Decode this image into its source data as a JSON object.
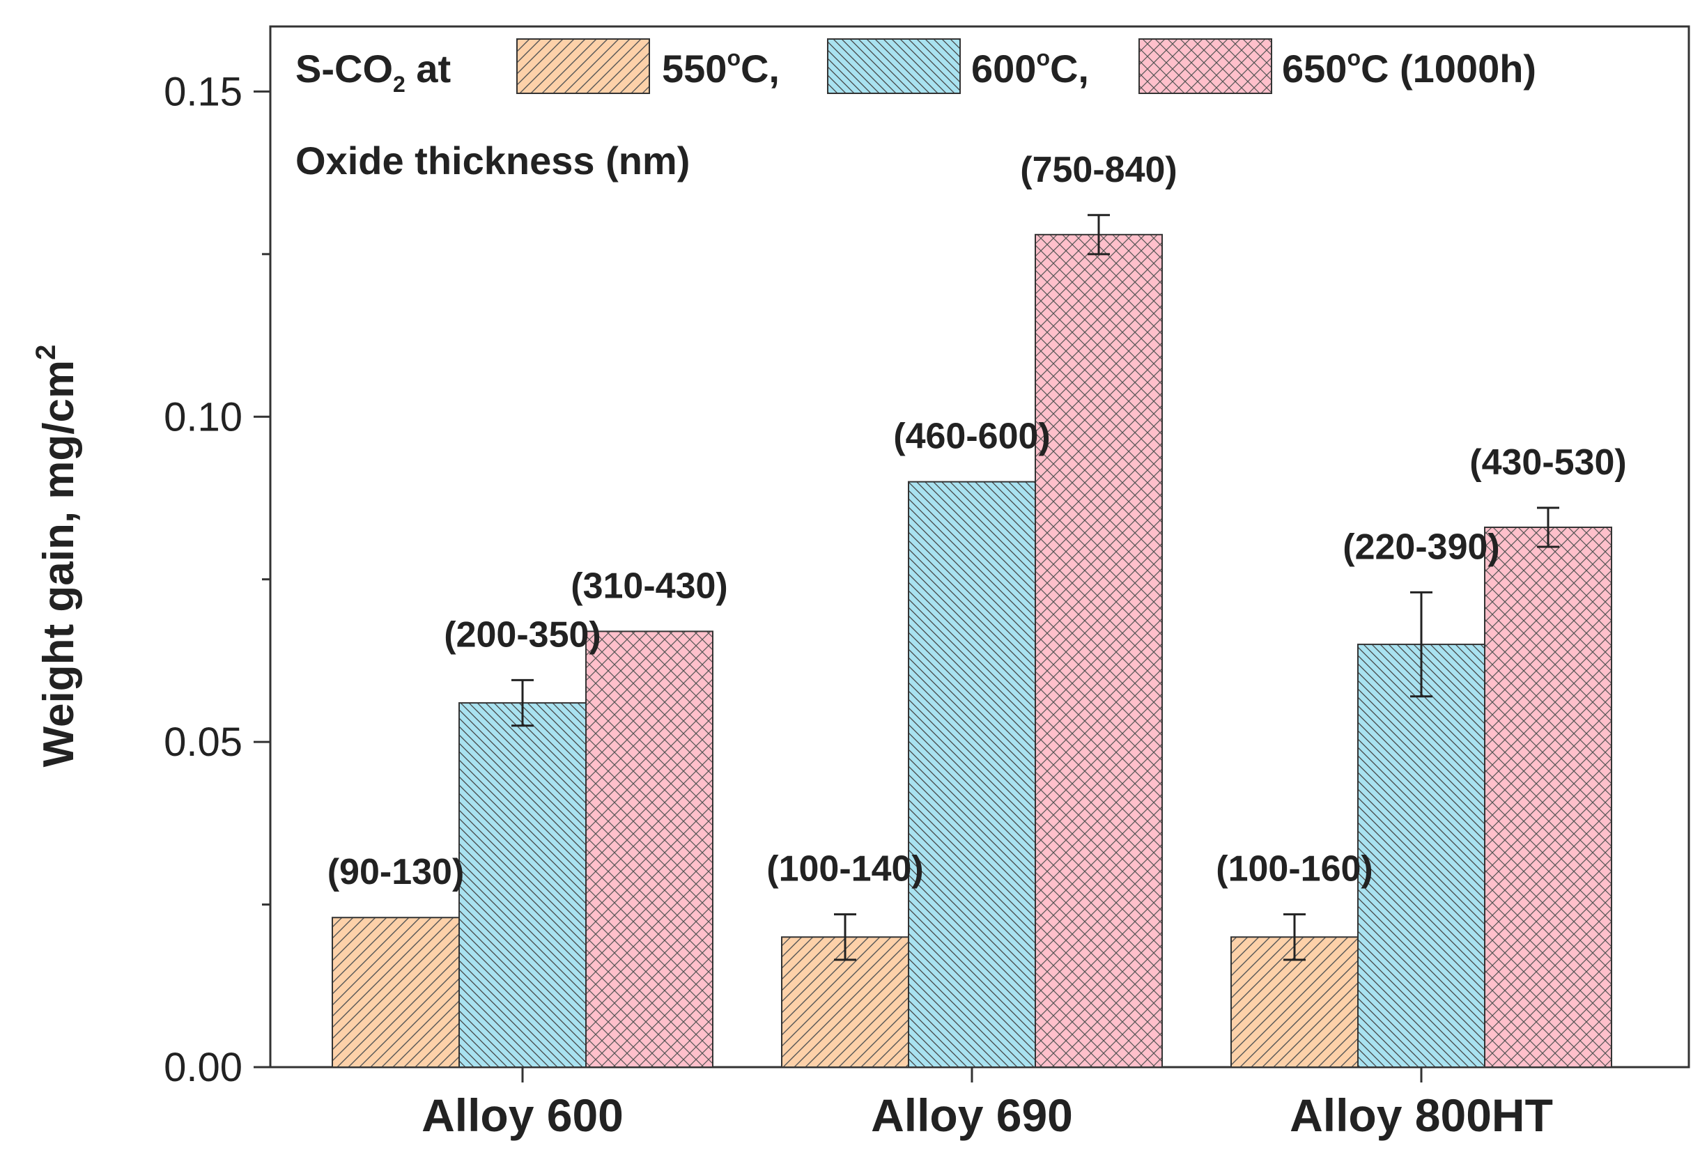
{
  "chart_data": {
    "type": "bar",
    "title": "",
    "xlabel": "",
    "ylabel": "Weight gain, mg/cm",
    "ylabel_superscript": "2",
    "ylim": [
      0,
      0.16
    ],
    "yticks": [
      "0.00",
      "0.05",
      "0.10",
      "0.15"
    ],
    "ytick_values": [
      0.0,
      0.05,
      0.1,
      0.15
    ],
    "grid": false,
    "categories": [
      "Alloy 600",
      "Alloy 690",
      "Alloy 800HT"
    ],
    "legend": {
      "position": "top",
      "prefix": "S-CO",
      "prefix_subscript": "2",
      "prefix_suffix": " at",
      "subtitle": "Oxide thickness (nm)",
      "entries": [
        {
          "temp": "550",
          "unit": "C,"
        },
        {
          "temp": "600",
          "unit": "C,"
        },
        {
          "temp": "650",
          "unit": "C (1000h)"
        }
      ],
      "degree_symbol": "o"
    },
    "series": [
      {
        "name": "550°C",
        "color": "#fdd1a9",
        "pattern": "diagonal-up",
        "values": [
          0.023,
          0.02,
          0.02
        ],
        "errors": [
          null,
          0.0035,
          0.0035
        ],
        "labels": [
          "(90-130)",
          "(100-140)",
          "(100-160)"
        ]
      },
      {
        "name": "600°C",
        "color": "#a9e2f0",
        "pattern": "diagonal-down",
        "values": [
          0.056,
          0.09,
          0.065
        ],
        "errors": [
          0.0035,
          null,
          0.008
        ],
        "labels": [
          "(200-350)",
          "(460-600)",
          "(220-390)"
        ]
      },
      {
        "name": "650°C (1000h)",
        "color": "#ffc0cb",
        "pattern": "crosshatch",
        "values": [
          0.067,
          0.128,
          0.083
        ],
        "errors": [
          null,
          0.003,
          0.003
        ],
        "labels": [
          "(310-430)",
          "(750-840)",
          "(430-530)"
        ]
      }
    ]
  }
}
